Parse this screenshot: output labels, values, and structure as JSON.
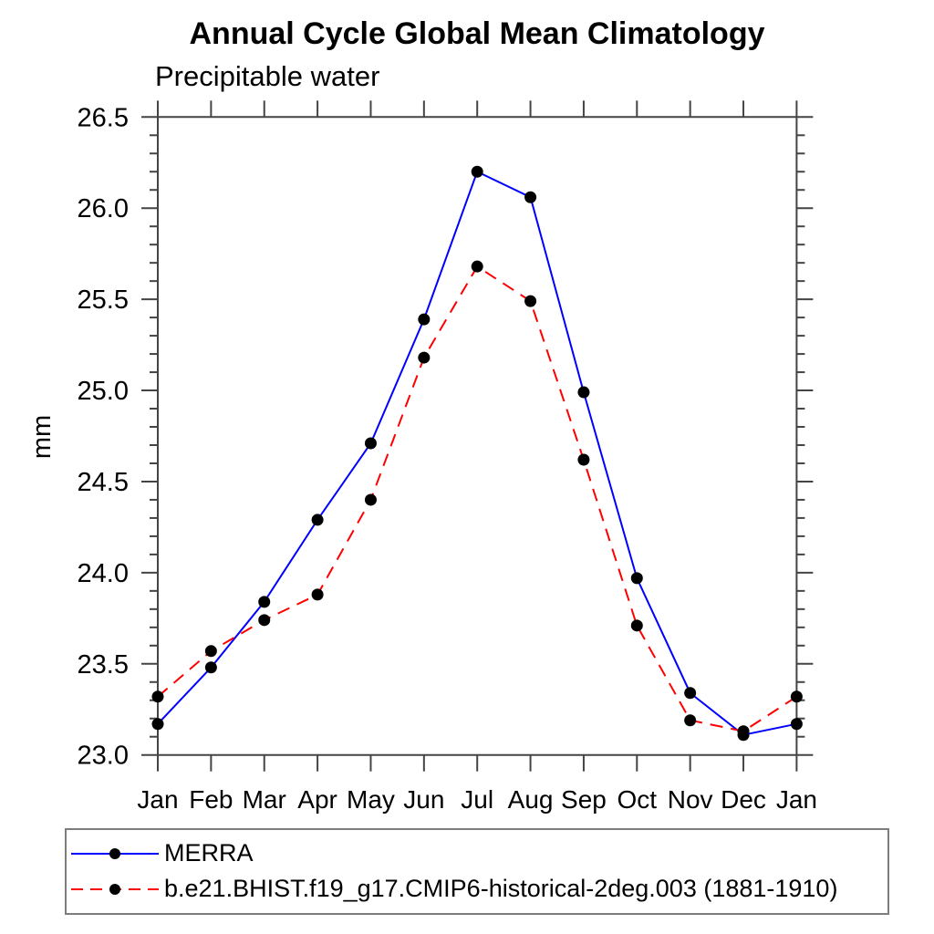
{
  "chart_data": {
    "type": "line",
    "title": "Annual Cycle Global Mean Climatology",
    "subtitle": "Precipitable water",
    "ylabel": "mm",
    "xlabel": "",
    "categories": [
      "Jan",
      "Feb",
      "Mar",
      "Apr",
      "May",
      "Jun",
      "Jul",
      "Aug",
      "Sep",
      "Oct",
      "Nov",
      "Dec",
      "Jan"
    ],
    "ylim": [
      23.0,
      26.5
    ],
    "ytick_labels": [
      "23.0",
      "23.5",
      "24.0",
      "24.5",
      "25.0",
      "25.5",
      "26.0",
      "26.5"
    ],
    "ytick_major_step": 0.5,
    "ytick_minor_step": 0.1,
    "grid": false,
    "legend_position": "bottom-left-box",
    "frame_color": "#444444",
    "text_color": "#000000",
    "series": [
      {
        "name": "MERRA",
        "line_color": "#0000ff",
        "line_style": "solid",
        "marker": "filled-circle",
        "marker_color": "#000000",
        "values": [
          23.17,
          23.48,
          23.84,
          24.29,
          24.71,
          25.39,
          26.2,
          26.06,
          24.99,
          23.97,
          23.34,
          23.11,
          23.17
        ]
      },
      {
        "name": "b.e21.BHIST.f19_g17.CMIP6-historical-2deg.003 (1881-1910)",
        "line_color": "#ff0000",
        "line_style": "dashed",
        "marker": "filled-circle",
        "marker_color": "#000000",
        "values": [
          23.32,
          23.57,
          23.74,
          23.88,
          24.4,
          25.18,
          25.68,
          25.49,
          24.62,
          23.71,
          23.19,
          23.13,
          23.32
        ]
      }
    ]
  }
}
